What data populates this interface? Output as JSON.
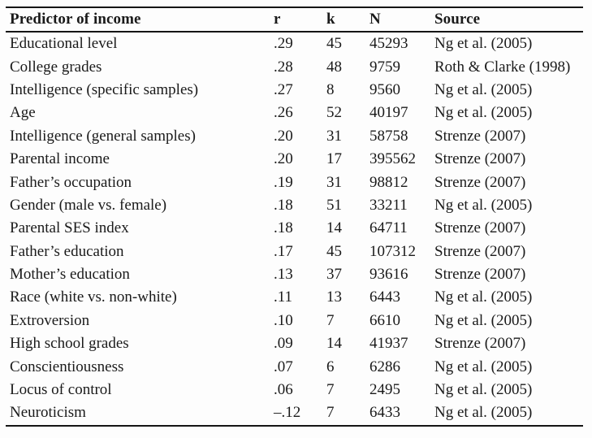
{
  "table": {
    "headers": {
      "predictor": "Predictor of income",
      "r": "r",
      "k": "k",
      "n": "N",
      "source": "Source"
    },
    "rows": [
      {
        "predictor": "Educational level",
        "r": ".29",
        "k": "45",
        "n": "45293",
        "source": "Ng et al. (2005)"
      },
      {
        "predictor": "College grades",
        "r": ".28",
        "k": "48",
        "n": "9759",
        "source": "Roth & Clarke (1998)"
      },
      {
        "predictor": "Intelligence (specific samples)",
        "r": ".27",
        "k": "8",
        "n": "9560",
        "source": "Ng et al. (2005)"
      },
      {
        "predictor": "Age",
        "r": ".26",
        "k": "52",
        "n": "40197",
        "source": "Ng et al. (2005)"
      },
      {
        "predictor": "Intelligence (general samples)",
        "r": ".20",
        "k": "31",
        "n": "58758",
        "source": "Strenze (2007)"
      },
      {
        "predictor": "Parental income",
        "r": ".20",
        "k": "17",
        "n": "395562",
        "source": "Strenze (2007)"
      },
      {
        "predictor": "Father’s occupation",
        "r": ".19",
        "k": "31",
        "n": "98812",
        "source": "Strenze (2007)"
      },
      {
        "predictor": "Gender (male vs. female)",
        "r": ".18",
        "k": "51",
        "n": "33211",
        "source": "Ng et al. (2005)"
      },
      {
        "predictor": "Parental SES index",
        "r": ".18",
        "k": "14",
        "n": "64711",
        "source": "Strenze (2007)"
      },
      {
        "predictor": "Father’s education",
        "r": ".17",
        "k": "45",
        "n": "107312",
        "source": "Strenze (2007)"
      },
      {
        "predictor": "Mother’s education",
        "r": ".13",
        "k": "37",
        "n": "93616",
        "source": "Strenze (2007)"
      },
      {
        "predictor": "Race (white vs. non-white)",
        "r": ".11",
        "k": "13",
        "n": "6443",
        "source": "Ng et al. (2005)"
      },
      {
        "predictor": "Extroversion",
        "r": ".10",
        "k": "7",
        "n": "6610",
        "source": "Ng et al. (2005)"
      },
      {
        "predictor": "High school grades",
        "r": ".09",
        "k": "14",
        "n": "41937",
        "source": "Strenze (2007)"
      },
      {
        "predictor": "Conscientiousness",
        "r": ".07",
        "k": "6",
        "n": "6286",
        "source": "Ng et al. (2005)"
      },
      {
        "predictor": "Locus of control",
        "r": ".06",
        "k": "7",
        "n": "2495",
        "source": "Ng et al. (2005)"
      },
      {
        "predictor": "Neuroticism",
        "r": "–.12",
        "k": "7",
        "n": "6433",
        "source": "Ng et al. (2005)"
      }
    ]
  }
}
